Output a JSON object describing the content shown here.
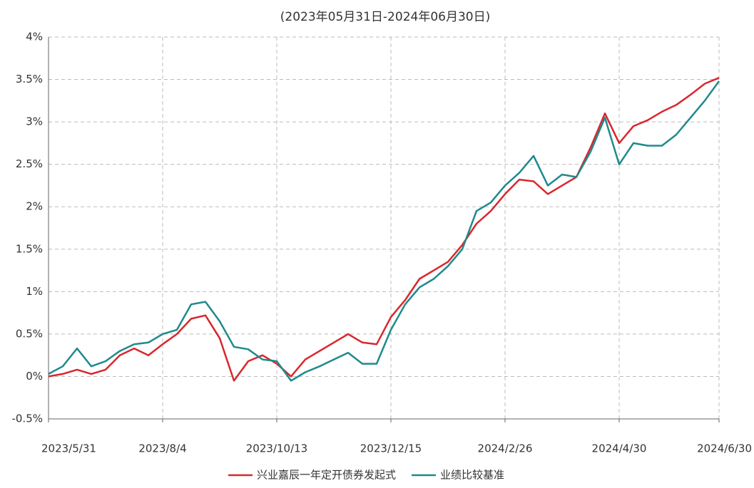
{
  "chart_data": {
    "type": "line",
    "title": "(2023年05月31日-2024年06月30日)",
    "categories": [
      "2023/5/31",
      null,
      null,
      null,
      null,
      null,
      null,
      null,
      "2023/8/4",
      null,
      null,
      null,
      null,
      null,
      null,
      null,
      "2023/10/13",
      null,
      null,
      null,
      null,
      null,
      null,
      null,
      "2023/12/15",
      null,
      null,
      null,
      null,
      null,
      null,
      null,
      "2024/2/26",
      null,
      null,
      null,
      null,
      null,
      null,
      null,
      "2024/4/30",
      null,
      null,
      null,
      null,
      null,
      null,
      "2024/6/30"
    ],
    "series": [
      {
        "name": "兴业嘉辰一年定开债券发起式",
        "color": "#d9272e",
        "values": [
          0,
          0.03,
          0.08,
          0.03,
          0.08,
          0.25,
          0.33,
          0.25,
          0.38,
          0.5,
          0.68,
          0.72,
          0.45,
          -0.05,
          0.18,
          0.25,
          0.15,
          0.0,
          0.2,
          0.3,
          0.4,
          0.5,
          0.4,
          0.38,
          0.7,
          0.9,
          1.15,
          1.25,
          1.35,
          1.55,
          1.8,
          1.95,
          2.15,
          2.32,
          2.3,
          2.15,
          2.25,
          2.35,
          2.7,
          3.1,
          2.75,
          2.95,
          3.02,
          3.12,
          3.2,
          3.32,
          3.45,
          3.52
        ]
      },
      {
        "name": "业绩比较基准",
        "color": "#1f8a8c",
        "values": [
          0.03,
          0.12,
          0.33,
          0.12,
          0.18,
          0.3,
          0.38,
          0.4,
          0.5,
          0.55,
          0.85,
          0.88,
          0.65,
          0.35,
          0.32,
          0.2,
          0.18,
          -0.05,
          0.05,
          0.12,
          0.2,
          0.28,
          0.15,
          0.15,
          0.55,
          0.85,
          1.05,
          1.15,
          1.3,
          1.5,
          1.95,
          2.05,
          2.25,
          2.4,
          2.6,
          2.25,
          2.38,
          2.35,
          2.65,
          3.05,
          2.5,
          2.75,
          2.72,
          2.72,
          2.85,
          3.05,
          3.25,
          3.48
        ]
      }
    ],
    "ylim": [
      -0.5,
      4
    ],
    "yticks": [
      {
        "value": -0.5,
        "label": "-0.5%"
      },
      {
        "value": 0,
        "label": "0%"
      },
      {
        "value": 0.5,
        "label": "0.5%"
      },
      {
        "value": 1,
        "label": "1%"
      },
      {
        "value": 1.5,
        "label": "1.5%"
      },
      {
        "value": 2,
        "label": "2%"
      },
      {
        "value": 2.5,
        "label": "2.5%"
      },
      {
        "value": 3,
        "label": "3%"
      },
      {
        "value": 3.5,
        "label": "3.5%"
      },
      {
        "value": 4,
        "label": "4%"
      }
    ],
    "grid": true,
    "legend": "bottom"
  }
}
